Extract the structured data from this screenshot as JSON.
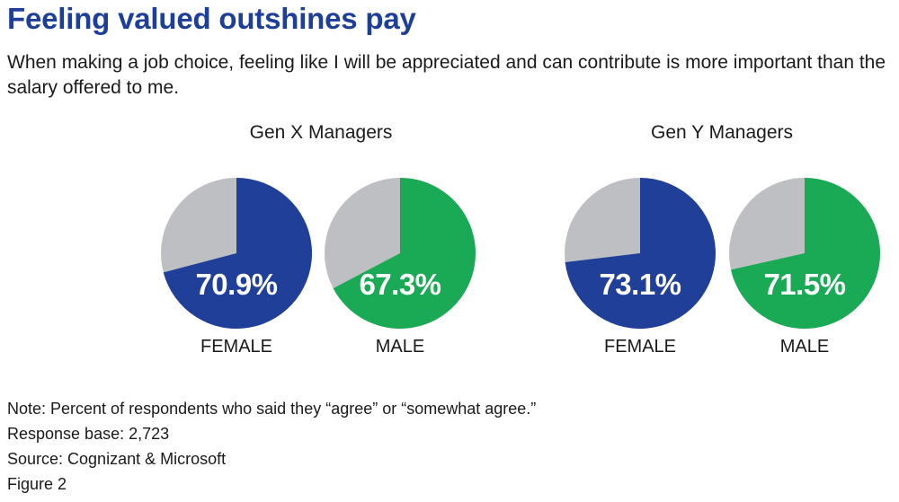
{
  "title": "Feeling valued outshines pay",
  "subtitle": "When making a job choice, feeling like I will be appreciated and can contribute is more important than the salary offered to me.",
  "colors": {
    "title": "#1d3f9a",
    "female": "#1f3f98",
    "male": "#1aaa55",
    "remainder": "#bebfc2"
  },
  "chart_data": {
    "type": "pie",
    "groups": [
      {
        "title": "Gen X Managers",
        "pies": [
          {
            "label": "FEMALE",
            "value": 70.9,
            "display": "70.9%"
          },
          {
            "label": "MALE",
            "value": 67.3,
            "display": "67.3%"
          }
        ]
      },
      {
        "title": "Gen Y Managers",
        "pies": [
          {
            "label": "FEMALE",
            "value": 73.1,
            "display": "73.1%"
          },
          {
            "label": "MALE",
            "value": 71.5,
            "display": "71.5%"
          }
        ]
      }
    ]
  },
  "notes": [
    "Note: Percent of respondents who said they “agree” or “somewhat agree.”",
    "Response base: 2,723",
    "Source: Cognizant & Microsoft",
    "Figure 2"
  ]
}
